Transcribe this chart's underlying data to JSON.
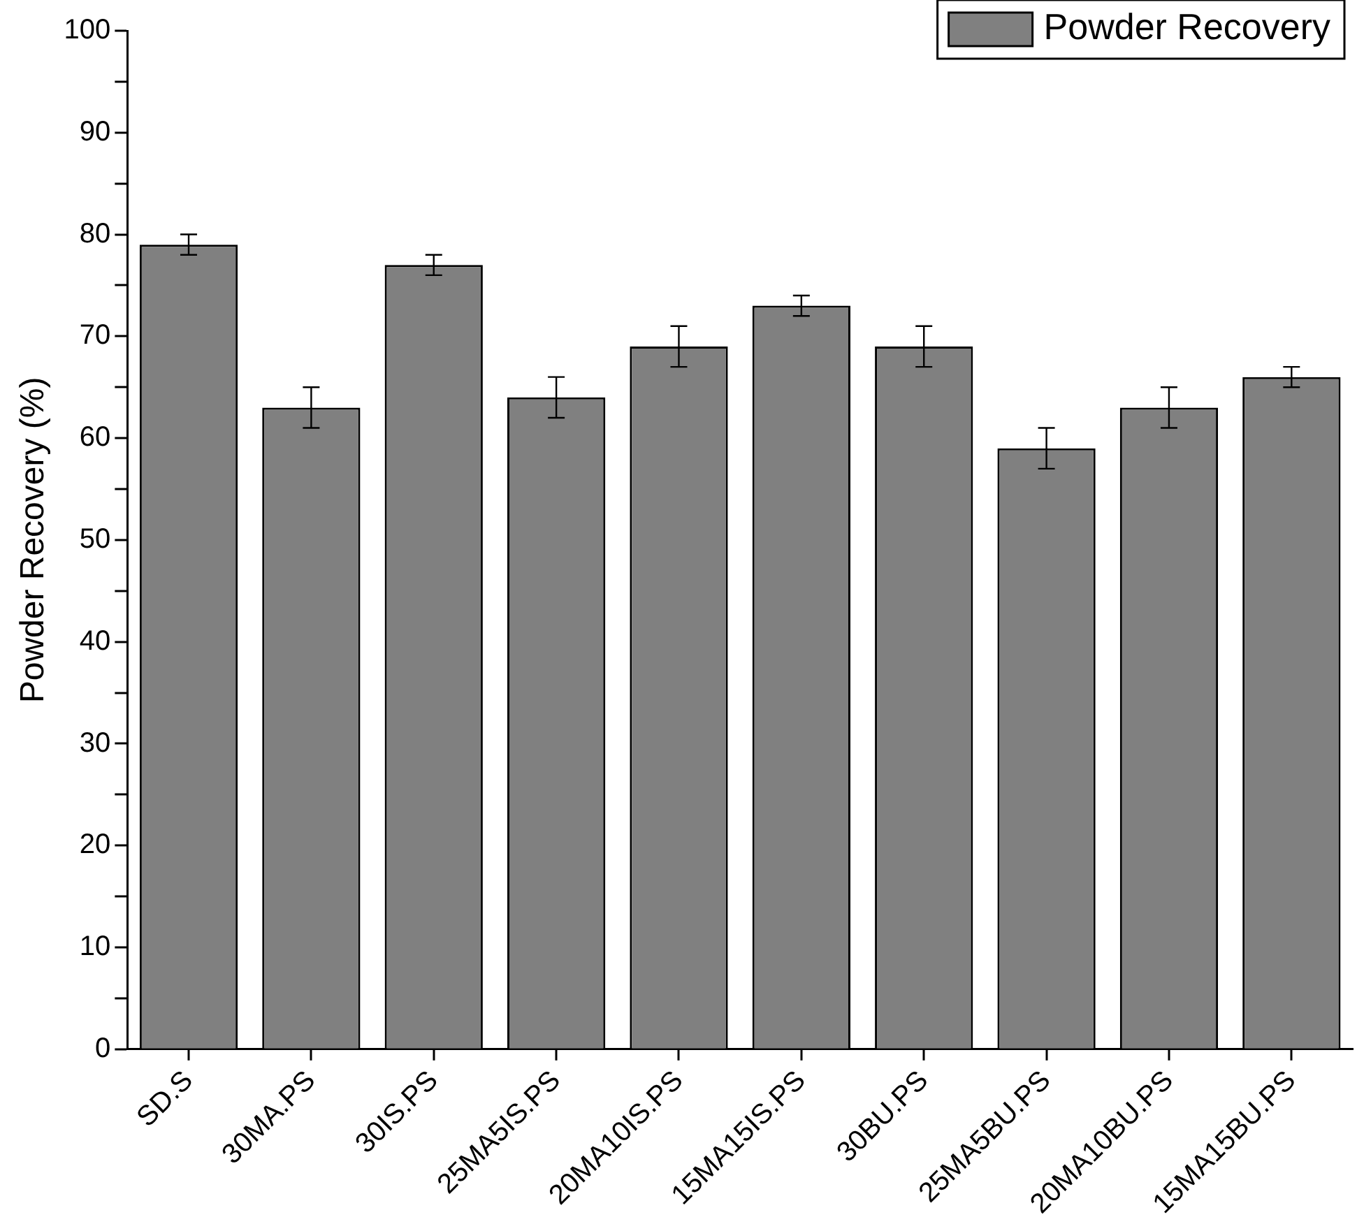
{
  "chart_data": {
    "type": "bar",
    "ylabel": "Powder Recovery (%)",
    "categories": [
      "SD.S",
      "30MA.PS",
      "30IS.PS",
      "25MA5IS.PS",
      "20MA10IS.PS",
      "15MA15IS.PS",
      "30BU.PS",
      "25MA5BU.PS",
      "20MA10BU.PS",
      "15MA15BU.PS"
    ],
    "series": [
      {
        "name": "Powder Recovery",
        "color": "#808080",
        "values": [
          79,
          63,
          77,
          64,
          69,
          73,
          69,
          59,
          63,
          66
        ],
        "errors": [
          1,
          2,
          1,
          2,
          2,
          1,
          2,
          2,
          2,
          1
        ]
      }
    ],
    "ylim": [
      0,
      100
    ],
    "yticks": [
      0,
      {
        "value": 5,
        "label": null
      },
      10,
      {
        "value": 15,
        "label": null
      },
      20,
      {
        "value": 25,
        "label": null
      },
      30,
      {
        "value": 35,
        "label": null
      },
      40,
      {
        "value": 45,
        "label": null
      },
      50,
      {
        "value": 55,
        "label": null
      },
      60,
      {
        "value": 65,
        "label": null
      },
      70,
      {
        "value": 75,
        "label": null
      },
      80,
      {
        "value": 85,
        "label": null
      },
      90,
      {
        "value": 95,
        "label": null
      },
      100
    ],
    "grid": false,
    "legend": "top right"
  }
}
